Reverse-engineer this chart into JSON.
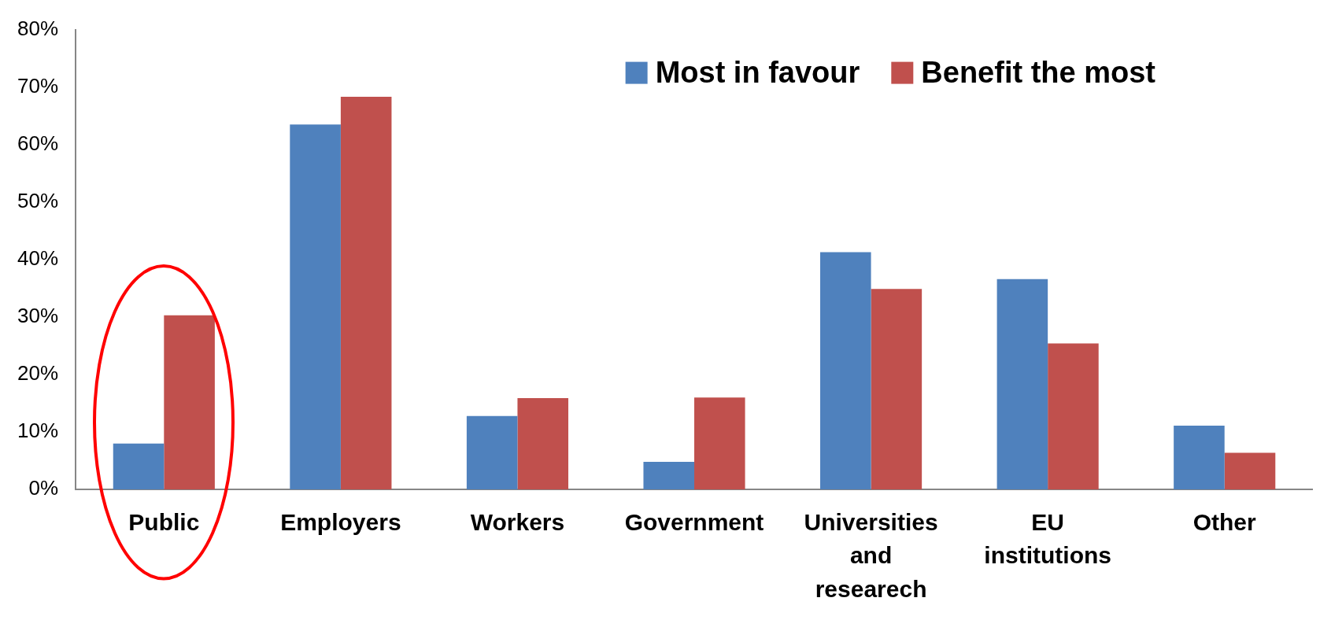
{
  "chart_data": {
    "type": "bar",
    "categories": [
      "Public",
      "Employers",
      "Workers",
      "Government",
      "Universities and researech",
      "EU institutions",
      "Other"
    ],
    "series": [
      {
        "name": "Most in favour",
        "color": "#4f81bd",
        "values": [
          8,
          63.5,
          12.8,
          4.8,
          41.3,
          36.6,
          11.1
        ]
      },
      {
        "name": "Benefit the most",
        "color": "#c0504d",
        "values": [
          30.3,
          68.3,
          15.9,
          16,
          34.9,
          25.4,
          6.4
        ]
      }
    ],
    "ylim": [
      0,
      80
    ],
    "yticks": [
      {
        "value": 0,
        "label": "0%"
      },
      {
        "value": 10,
        "label": "10%"
      },
      {
        "value": 20,
        "label": "20%"
      },
      {
        "value": 30,
        "label": "30%"
      },
      {
        "value": 40,
        "label": "40%"
      },
      {
        "value": 50,
        "label": "50%"
      },
      {
        "value": 60,
        "label": "60%"
      },
      {
        "value": 70,
        "label": "70%"
      },
      {
        "value": 80,
        "label": "80%"
      }
    ],
    "grid": false,
    "legend": "top right"
  }
}
